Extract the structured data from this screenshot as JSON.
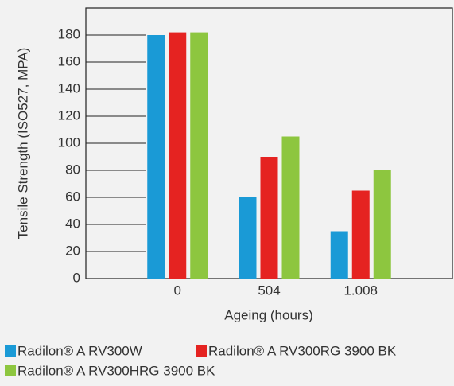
{
  "chart_data": {
    "type": "bar",
    "y_label": "Tensile Strength (ISO527, MPA)",
    "x_label": "Ageing (hours)",
    "categories": [
      "0",
      "504",
      "1.008"
    ],
    "series": [
      {
        "name": "Radilon® A RV300W",
        "color": "#1a9ad6",
        "values": [
          180,
          60,
          35
        ]
      },
      {
        "name": "Radilon® A RV300RG 3900 BK",
        "color": "#e52321",
        "values": [
          182,
          90,
          65
        ]
      },
      {
        "name": "Radilon® A RV300HRG 3900 BK",
        "color": "#8dc63f",
        "values": [
          182,
          105,
          80
        ]
      }
    ],
    "ylim": [
      0,
      200
    ],
    "yticks": [
      0,
      20,
      40,
      60,
      80,
      100,
      120,
      140,
      160,
      180
    ]
  }
}
